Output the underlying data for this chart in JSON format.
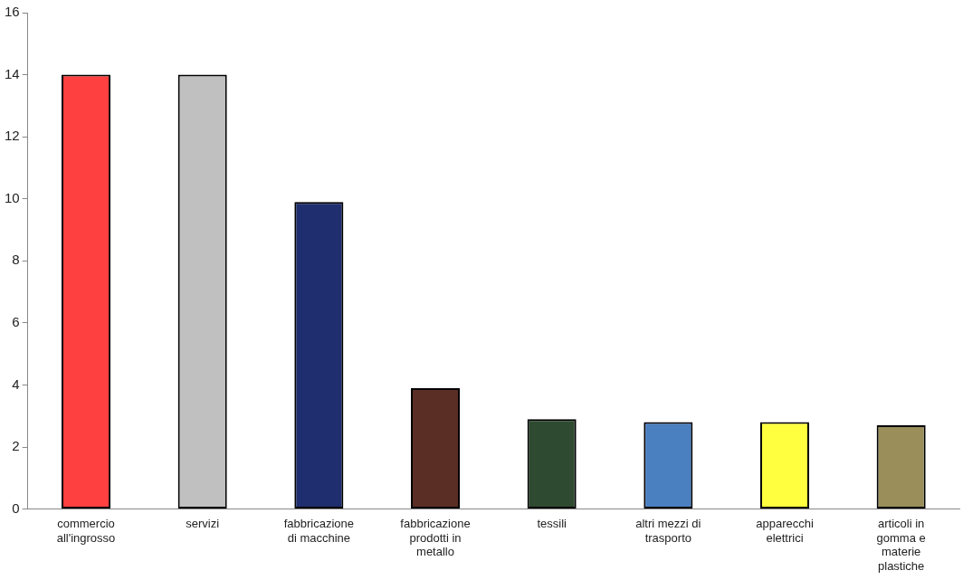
{
  "chart_data": {
    "type": "bar",
    "categories": [
      "commercio all'ingrosso",
      "servizi",
      "fabbricazione di macchine",
      "fabbricazione prodotti in metallo",
      "tessili",
      "altri mezzi di trasporto",
      "apparecchi elettrici",
      "articoli in gomma e materie plastiche"
    ],
    "values": [
      14,
      14,
      9.9,
      3.9,
      2.9,
      2.8,
      2.8,
      2.7
    ],
    "colors": [
      "#ff4040",
      "#c0c0c0",
      "#1f2e6e",
      "#5a2e25",
      "#2e4a30",
      "#4a7fc0",
      "#ffff40",
      "#9a8f5a"
    ],
    "ylim": [
      0,
      16
    ],
    "yticks": [
      0,
      2,
      4,
      6,
      8,
      10,
      12,
      14,
      16
    ],
    "grid": false,
    "legend": false
  }
}
